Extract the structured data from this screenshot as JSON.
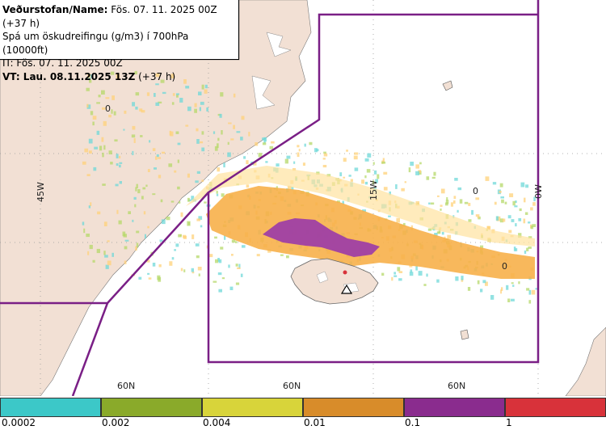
{
  "info": {
    "line1_bold": "Veðurstofan/Name:",
    "line1_rest": " Fös. 07. 11. 2025 00Z (+37 h)",
    "line2": "Spá um öskudreifingu (g/m3) í 700hPa (10000ft)",
    "line3": "IT: Fös. 07. 11. 2025 00Z",
    "line4": "VT: Lau. 08.11.2025 13Z",
    "line4_rest": " (+37 h)"
  },
  "map": {
    "lat_labels": [
      "60N",
      "60N",
      "60N"
    ],
    "lon_labels": [
      "45W",
      "15W",
      "0W"
    ],
    "zero_labels": [
      "0",
      "0",
      "0"
    ],
    "colors": {
      "land": "#f2e0d4",
      "sea": "#ffffff",
      "boundary": "#7a1f86",
      "ash_light": "#ffd27a",
      "ash_mid": "#f7b04a",
      "ash_high": "#9a3aa8",
      "ash_sparse_cyan": "#6fd8d8",
      "ash_sparse_green": "#b5d86a"
    }
  },
  "legend": {
    "labels": [
      "0.0002",
      "0.002",
      "0.004",
      "0.01",
      "0.1",
      "1"
    ],
    "colors": [
      "#3cc8c8",
      "#8aaa2a",
      "#d8d43a",
      "#d88c2a",
      "#8a2c8e",
      "#d8323a"
    ]
  }
}
